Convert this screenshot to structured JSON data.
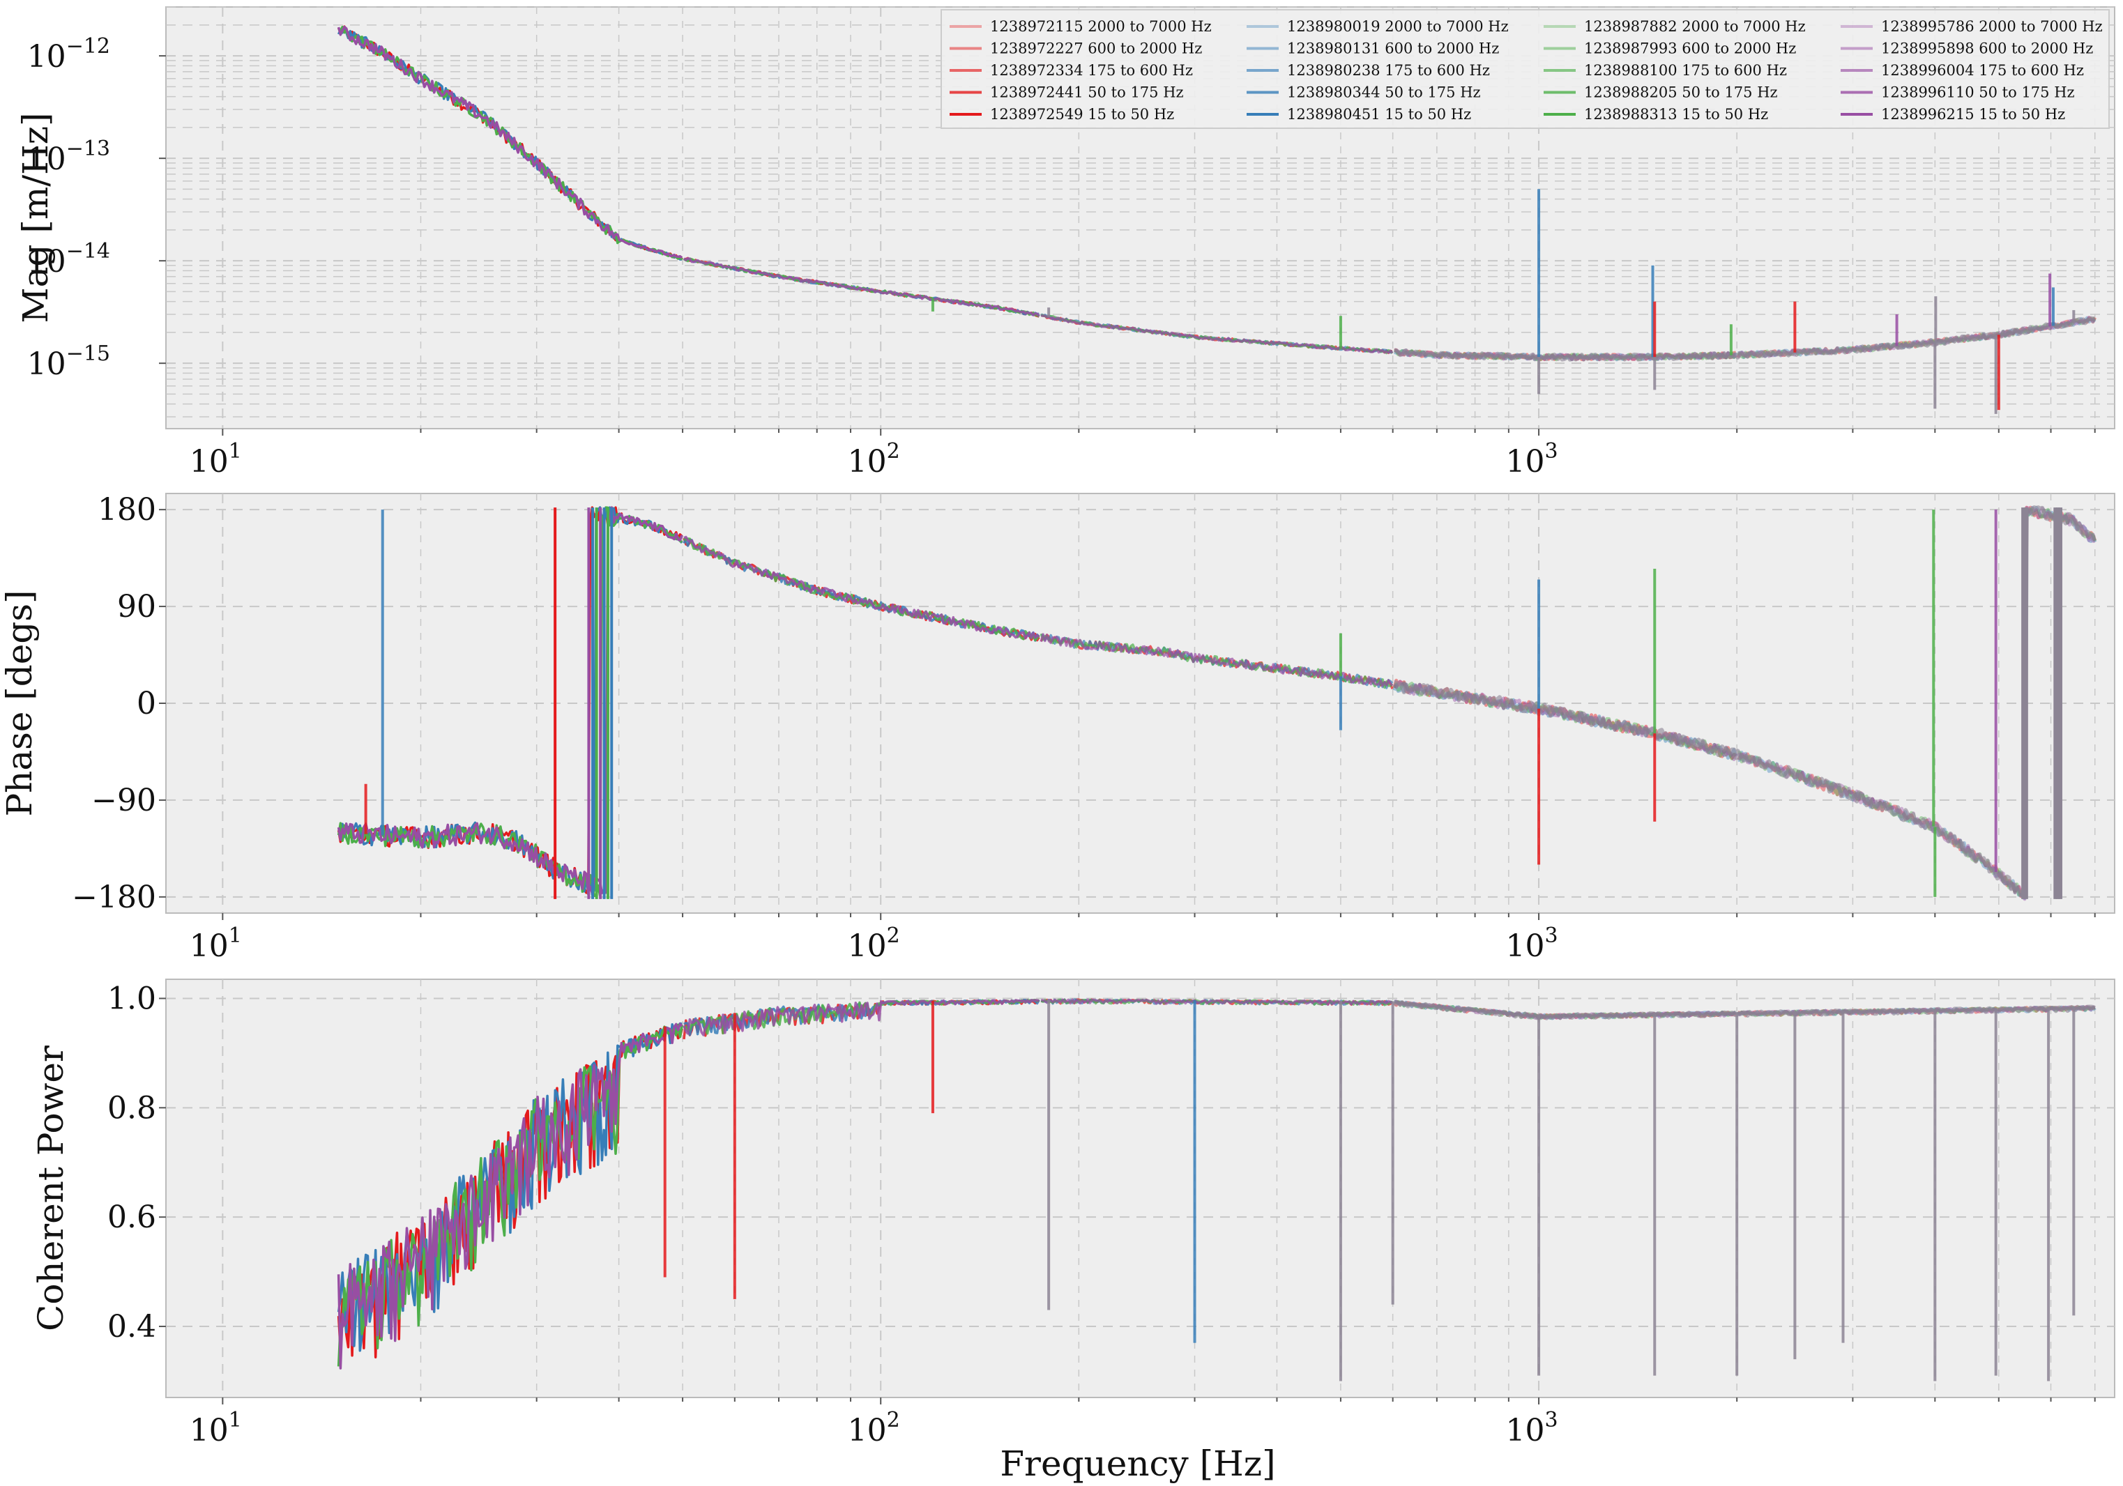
{
  "figure": {
    "title": "",
    "xlabel": "Frequency [Hz]"
  },
  "colors": {
    "red": "#e41a1c",
    "blue": "#377eb8",
    "green": "#4daf4a",
    "purple": "#984ea3",
    "grey": "#8c8494",
    "panel_bg": "#eeeeee",
    "grid": "#c8c8c8",
    "spine": "#bbbbbb"
  },
  "legend": {
    "placement": "top-right",
    "entries": [
      {
        "label": "1238972115 2000 to 7000 Hz",
        "color": "#e41a1c",
        "alpha": 0.35
      },
      {
        "label": "1238972227 600 to 2000 Hz",
        "color": "#e41a1c",
        "alpha": 0.5
      },
      {
        "label": "1238972334 175 to 600 Hz",
        "color": "#e41a1c",
        "alpha": 0.65
      },
      {
        "label": "1238972441 50 to 175 Hz",
        "color": "#e41a1c",
        "alpha": 0.8
      },
      {
        "label": "1238972549 15 to 50 Hz",
        "color": "#e41a1c",
        "alpha": 1.0
      },
      {
        "label": "1238980019 2000 to 7000 Hz",
        "color": "#377eb8",
        "alpha": 0.35
      },
      {
        "label": "1238980131 600 to 2000 Hz",
        "color": "#377eb8",
        "alpha": 0.5
      },
      {
        "label": "1238980238 175 to 600 Hz",
        "color": "#377eb8",
        "alpha": 0.65
      },
      {
        "label": "1238980344 50 to 175 Hz",
        "color": "#377eb8",
        "alpha": 0.8
      },
      {
        "label": "1238980451 15 to 50 Hz",
        "color": "#377eb8",
        "alpha": 1.0
      },
      {
        "label": "1238987882 2000 to 7000 Hz",
        "color": "#4daf4a",
        "alpha": 0.35
      },
      {
        "label": "1238987993 600 to 2000 Hz",
        "color": "#4daf4a",
        "alpha": 0.5
      },
      {
        "label": "1238988100 175 to 600 Hz",
        "color": "#4daf4a",
        "alpha": 0.65
      },
      {
        "label": "1238988205 50 to 175 Hz",
        "color": "#4daf4a",
        "alpha": 0.8
      },
      {
        "label": "1238988313 15 to 50 Hz",
        "color": "#4daf4a",
        "alpha": 1.0
      },
      {
        "label": "1238995786 2000 to 7000 Hz",
        "color": "#984ea3",
        "alpha": 0.35
      },
      {
        "label": "1238995898 600 to 2000 Hz",
        "color": "#984ea3",
        "alpha": 0.5
      },
      {
        "label": "1238996004 175 to 600 Hz",
        "color": "#984ea3",
        "alpha": 0.65
      },
      {
        "label": "1238996110 50 to 175 Hz",
        "color": "#984ea3",
        "alpha": 0.8
      },
      {
        "label": "1238996215 15 to 50 Hz",
        "color": "#984ea3",
        "alpha": 1.0
      }
    ]
  },
  "chart_data": [
    {
      "type": "line",
      "panel": "magnitude",
      "ylabel": "Mag [m/Hz]",
      "xscale": "log",
      "yscale": "log",
      "xlim": [
        8.2,
        7500
      ],
      "ylim": [
        2.3e-16,
        3e-12
      ],
      "grid": true,
      "xticks": [
        {
          "value": 10,
          "label": "10",
          "exp": "1"
        },
        {
          "value": 100,
          "label": "10",
          "exp": "2"
        },
        {
          "value": 1000,
          "label": "10",
          "exp": "3"
        }
      ],
      "yticks": [
        {
          "value": 1e-12,
          "label": "10",
          "exp": "−12"
        },
        {
          "value": 1e-13,
          "label": "10",
          "exp": "−13"
        },
        {
          "value": 1e-14,
          "label": "10",
          "exp": "−14"
        },
        {
          "value": 1e-15,
          "label": "10",
          "exp": "−15"
        }
      ],
      "trend": [
        [
          15,
          1.8e-12
        ],
        [
          17,
          1.2e-12
        ],
        [
          20,
          6e-13
        ],
        [
          25,
          2.5e-13
        ],
        [
          30,
          9e-14
        ],
        [
          35,
          3.5e-14
        ],
        [
          40,
          1.6e-14
        ],
        [
          50,
          1.05e-14
        ],
        [
          70,
          7e-15
        ],
        [
          100,
          5e-15
        ],
        [
          150,
          3.5e-15
        ],
        [
          200,
          2.5e-15
        ],
        [
          300,
          1.8e-15
        ],
        [
          500,
          1.4e-15
        ],
        [
          700,
          1.2e-15
        ],
        [
          1000,
          1.15e-15
        ],
        [
          1500,
          1.15e-15
        ],
        [
          2000,
          1.2e-15
        ],
        [
          3000,
          1.35e-15
        ],
        [
          4000,
          1.6e-15
        ],
        [
          5000,
          1.9e-15
        ],
        [
          6000,
          2.3e-15
        ],
        [
          7000,
          2.7e-15
        ]
      ],
      "spikes": [
        {
          "x": 120,
          "y": 3.2e-15,
          "color": "green"
        },
        {
          "x": 180,
          "y": 3.5e-15,
          "color": "grey"
        },
        {
          "x": 500,
          "y": 2.9e-15,
          "color": "green"
        },
        {
          "x": 1000,
          "y": 5e-14,
          "color": "blue"
        },
        {
          "x": 1000,
          "y": 5e-16,
          "color": "grey"
        },
        {
          "x": 1490,
          "y": 9e-15,
          "color": "blue"
        },
        {
          "x": 1500,
          "y": 4e-15,
          "color": "red"
        },
        {
          "x": 1500,
          "y": 5.5e-16,
          "color": "grey"
        },
        {
          "x": 1960,
          "y": 2.4e-15,
          "color": "green"
        },
        {
          "x": 2450,
          "y": 4e-15,
          "color": "red"
        },
        {
          "x": 3500,
          "y": 3e-15,
          "color": "purple"
        },
        {
          "x": 4010,
          "y": 4.5e-15,
          "color": "grey"
        },
        {
          "x": 4000,
          "y": 3.6e-16,
          "color": "grey"
        },
        {
          "x": 4950,
          "y": 3.2e-16,
          "color": "grey"
        },
        {
          "x": 5000,
          "y": 3.5e-16,
          "color": "red"
        },
        {
          "x": 5980,
          "y": 7.5e-15,
          "color": "purple"
        },
        {
          "x": 6050,
          "y": 5.5e-15,
          "color": "blue"
        },
        {
          "x": 6500,
          "y": 3.3e-15,
          "color": "grey"
        }
      ]
    },
    {
      "type": "line",
      "panel": "phase",
      "ylabel": "Phase [degs]",
      "xscale": "log",
      "yscale": "linear",
      "xlim": [
        8.2,
        7500
      ],
      "ylim": [
        -195,
        195
      ],
      "grid": true,
      "xticks": [
        {
          "value": 10,
          "label": "10",
          "exp": "1"
        },
        {
          "value": 100,
          "label": "10",
          "exp": "2"
        },
        {
          "value": 1000,
          "label": "10",
          "exp": "3"
        }
      ],
      "yticks": [
        {
          "value": 180,
          "label": "180"
        },
        {
          "value": 90,
          "label": "90"
        },
        {
          "value": 0,
          "label": "0"
        },
        {
          "value": -90,
          "label": "−90"
        },
        {
          "value": -180,
          "label": "−180"
        }
      ],
      "trend_low": [
        [
          15,
          -120
        ],
        [
          20,
          -125
        ],
        [
          25,
          -120
        ],
        [
          28,
          -128
        ],
        [
          32,
          -155
        ],
        [
          36,
          -168
        ],
        [
          38,
          -175
        ]
      ],
      "trend_high": [
        [
          37,
          178
        ],
        [
          45,
          165
        ],
        [
          60,
          130
        ],
        [
          80,
          105
        ],
        [
          100,
          90
        ],
        [
          150,
          68
        ],
        [
          200,
          55
        ],
        [
          270,
          48
        ],
        [
          300,
          42
        ],
        [
          500,
          25
        ],
        [
          700,
          10
        ],
        [
          1000,
          -5
        ],
        [
          1500,
          -28
        ],
        [
          2000,
          -48
        ],
        [
          3000,
          -85
        ],
        [
          4000,
          -115
        ],
        [
          4800,
          -150
        ],
        [
          5500,
          -180
        ]
      ],
      "trend_wrap": [
        [
          5500,
          180
        ],
        [
          6500,
          170
        ],
        [
          7000,
          150
        ]
      ],
      "wraps": [
        {
          "x": 32,
          "color": "red"
        },
        {
          "x": 36,
          "color": "purple"
        },
        {
          "x": 36.5,
          "color": "blue"
        },
        {
          "x": 37,
          "color": "green"
        },
        {
          "x": 37.5,
          "color": "purple"
        },
        {
          "x": 38,
          "color": "blue"
        },
        {
          "x": 38.5,
          "color": "green"
        },
        {
          "x": 39,
          "color": "blue"
        }
      ],
      "spikes": [
        {
          "x": 17.5,
          "y": 180,
          "color": "blue"
        },
        {
          "x": 16.5,
          "y": -75,
          "color": "red"
        },
        {
          "x": 500,
          "y": 65,
          "color": "green"
        },
        {
          "x": 500,
          "y": -25,
          "color": "blue"
        },
        {
          "x": 1000,
          "y": 115,
          "color": "blue"
        },
        {
          "x": 1000,
          "y": -150,
          "color": "red"
        },
        {
          "x": 1500,
          "y": 125,
          "color": "green"
        },
        {
          "x": 1500,
          "y": -110,
          "color": "red"
        },
        {
          "x": 3980,
          "y": 180,
          "color": "green"
        },
        {
          "x": 4000,
          "y": -180,
          "color": "green"
        },
        {
          "x": 4950,
          "y": 180,
          "color": "purple"
        },
        {
          "x": 6100,
          "y": 180,
          "color": "grey"
        },
        {
          "x": 6500,
          "y": -180,
          "color": "green"
        }
      ]
    },
    {
      "type": "line",
      "panel": "coherence",
      "ylabel": "Coherent Power",
      "xscale": "log",
      "yscale": "linear",
      "xlim": [
        8.2,
        7500
      ],
      "ylim": [
        0.27,
        1.035
      ],
      "grid": true,
      "xticks": [
        {
          "value": 10,
          "label": "10",
          "exp": "1"
        },
        {
          "value": 100,
          "label": "10",
          "exp": "2"
        },
        {
          "value": 1000,
          "label": "10",
          "exp": "3"
        }
      ],
      "yticks": [
        {
          "value": 1.0,
          "label": "1.0"
        },
        {
          "value": 0.8,
          "label": "0.8"
        },
        {
          "value": 0.6,
          "label": "0.6"
        },
        {
          "value": 0.4,
          "label": "0.4"
        }
      ],
      "trend": [
        [
          15,
          0.5
        ],
        [
          20,
          0.6
        ],
        [
          25,
          0.72
        ],
        [
          30,
          0.82
        ],
        [
          40,
          0.92
        ],
        [
          50,
          0.96
        ],
        [
          70,
          0.985
        ],
        [
          100,
          0.995
        ],
        [
          200,
          0.998
        ],
        [
          600,
          0.995
        ],
        [
          1000,
          0.97
        ],
        [
          2000,
          0.975
        ],
        [
          7000,
          0.985
        ]
      ],
      "spikes": [
        {
          "x": 60,
          "y": 0.45,
          "color": "red"
        },
        {
          "x": 47,
          "y": 0.49,
          "color": "red"
        },
        {
          "x": 120,
          "y": 0.79,
          "color": "red"
        },
        {
          "x": 180,
          "y": 0.43,
          "color": "grey"
        },
        {
          "x": 300,
          "y": 0.37,
          "color": "blue"
        },
        {
          "x": 500,
          "y": 0.3,
          "color": "grey"
        },
        {
          "x": 600,
          "y": 0.44,
          "color": "grey"
        },
        {
          "x": 1000,
          "y": 0.31,
          "color": "grey"
        },
        {
          "x": 1500,
          "y": 0.31,
          "color": "grey"
        },
        {
          "x": 2000,
          "y": 0.31,
          "color": "grey"
        },
        {
          "x": 2450,
          "y": 0.34,
          "color": "grey"
        },
        {
          "x": 2900,
          "y": 0.37,
          "color": "grey"
        },
        {
          "x": 4000,
          "y": 0.3,
          "color": "grey"
        },
        {
          "x": 4950,
          "y": 0.31,
          "color": "grey"
        },
        {
          "x": 5950,
          "y": 0.3,
          "color": "grey"
        },
        {
          "x": 6500,
          "y": 0.42,
          "color": "grey"
        }
      ]
    }
  ]
}
